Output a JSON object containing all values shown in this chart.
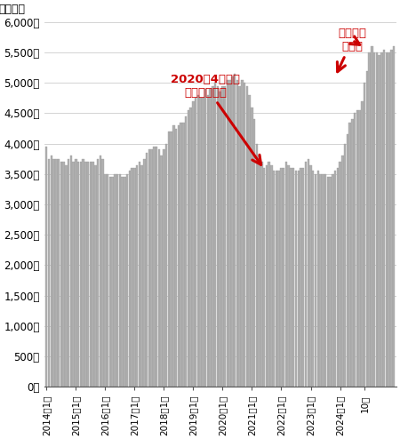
{
  "ylabel": "在庫戸数",
  "bar_color": "#b0b0b0",
  "bar_edge_color": "#999999",
  "ylim": [
    0,
    6000
  ],
  "yticks": [
    0,
    500,
    1000,
    1500,
    2000,
    2500,
    3000,
    3500,
    4000,
    4500,
    5000,
    5500,
    6000
  ],
  "ytick_labels": [
    "0戸",
    "500戸",
    "1,000戸",
    "1,500戸",
    "2,000戸",
    "2,500戸",
    "3,000戸",
    "3,500戸",
    "4,000戸",
    "4,500戸",
    "5,000戸",
    "5,500戸",
    "6,000戸"
  ],
  "annotation1_text": "2020年4月から\nコロナで急減",
  "annotation1_color": "#cc0000",
  "annotation2_text": "今は戻り\n横ばい",
  "annotation2_color": "#cc0000",
  "values": [
    3950,
    3750,
    3800,
    3750,
    3750,
    3750,
    3700,
    3700,
    3650,
    3750,
    3800,
    3700,
    3750,
    3700,
    3700,
    3750,
    3700,
    3700,
    3700,
    3700,
    3650,
    3750,
    3800,
    3750,
    3500,
    3500,
    3450,
    3450,
    3500,
    3500,
    3500,
    3450,
    3450,
    3500,
    3550,
    3600,
    3600,
    3650,
    3700,
    3650,
    3750,
    3850,
    3900,
    3900,
    3950,
    3950,
    3900,
    3800,
    3900,
    4000,
    4200,
    4200,
    4300,
    4250,
    4300,
    4350,
    4350,
    4450,
    4550,
    4600,
    4700,
    4750,
    4800,
    4750,
    4750,
    4900,
    4800,
    4900,
    4950,
    5000,
    4950,
    4850,
    4950,
    4950,
    5050,
    5050,
    5100,
    5150,
    5050,
    4950,
    5050,
    5000,
    4950,
    4800,
    4600,
    4400,
    4000,
    3800,
    3700,
    3600,
    3650,
    3700,
    3650,
    3550,
    3550,
    3550,
    3600,
    3600,
    3700,
    3650,
    3600,
    3600,
    3550,
    3550,
    3600,
    3600,
    3700,
    3750,
    3650,
    3550,
    3500,
    3550,
    3500,
    3500,
    3500,
    3450,
    3450,
    3500,
    3550,
    3600,
    3700,
    3800,
    4000,
    4150,
    4350,
    4400,
    4500,
    4550,
    4550,
    4700,
    5000,
    5200,
    5500,
    5600,
    5500,
    5500,
    5450,
    5500,
    5550,
    5500,
    5500,
    5550,
    5600
  ],
  "x_tick_positions": [
    0,
    12,
    24,
    36,
    48,
    60,
    72,
    84,
    96,
    108,
    120,
    130
  ],
  "x_tick_labels": [
    "2014年1月",
    "2015年1月",
    "2016年1月",
    "2017年1月",
    "2018年1月",
    "2019年1月",
    "2020年1月",
    "2021年1月",
    "2022年1月",
    "2023年1月",
    "2024年1月",
    "10月"
  ]
}
